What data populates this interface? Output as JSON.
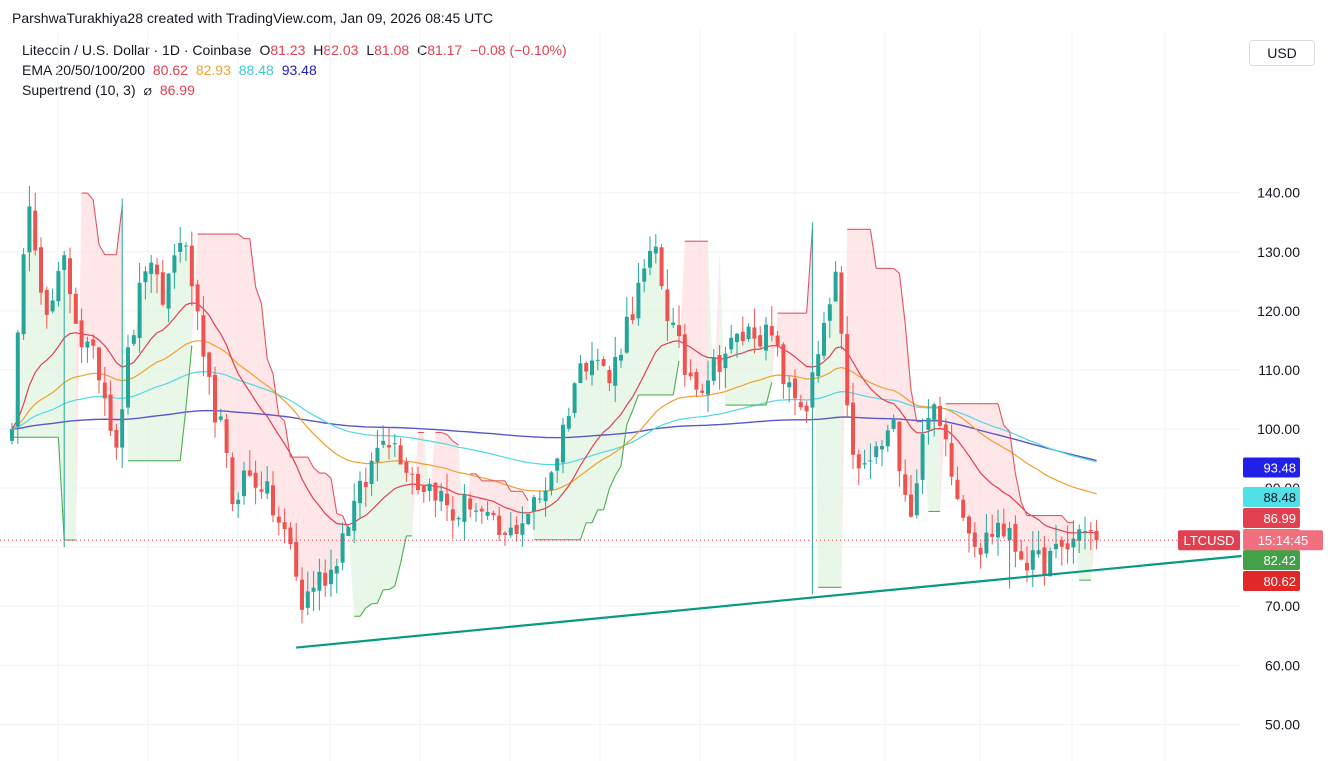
{
  "header": {
    "credit": "ParshwaTurakhiya28 created with TradingView.com, Jan 09, 2026 08:45 UTC",
    "symbol": "Litecoin / U.S. Dollar · 1D · Coinbase",
    "open_label": "O",
    "open": "81.23",
    "high_label": "H",
    "high": "82.03",
    "low_label": "L",
    "low": "81.08",
    "close_label": "C",
    "close": "81.17",
    "change": "−0.08 (−0.10%)",
    "ema_label": "EMA 20/50/100/200",
    "ema20": "80.62",
    "ema50": "82.93",
    "ema100": "88.48",
    "ema200": "93.48",
    "supertrend_label": "Supertrend (10, 3)",
    "supertrend_symbol": "⌀",
    "supertrend_value": "86.99",
    "currency": "USD"
  },
  "colors": {
    "up": "#26a69a",
    "down": "#ef5350",
    "ema20": "#e04050",
    "ema50": "#f0a030",
    "ema100": "#50d8e0",
    "ema200": "#5858c8",
    "st_down": "#e05560",
    "st_up": "#4caf50",
    "trend": "#089981",
    "grid": "#f0f3fa"
  },
  "chart_data": {
    "type": "candlestick",
    "symbol": "LTCUSD",
    "y_axis": {
      "ticks": [
        50,
        60,
        70,
        80,
        90,
        100,
        110,
        120,
        130,
        140
      ],
      "tick_labels": [
        "50.00",
        "60.00",
        "70.00",
        "80.00",
        "90.00",
        "100.00",
        "110.00",
        "120.00",
        "130.00",
        "140.00"
      ],
      "ylim": [
        46.5,
        154
      ],
      "grid": true
    },
    "price_line": 81.17,
    "price_tags": [
      {
        "label": "93.48",
        "value": 93.48,
        "color": "#2020e8"
      },
      {
        "label": "88.48",
        "value": 88.48,
        "color": "#50e0e8",
        "text_color": "#131722"
      },
      {
        "label": "86.99",
        "value": 86.99,
        "color": "#e04050"
      },
      {
        "label": "82.93",
        "value": 82.93,
        "color": "#f08020"
      },
      {
        "label": "82.42",
        "value": 82.42,
        "color": "#43a047"
      },
      {
        "label": "80.62",
        "value": 78.6,
        "color": "#e02828"
      }
    ],
    "symbol_tag": {
      "symbol": "LTCUSD",
      "countdown": "15:14:45",
      "value": 81.17
    },
    "close_path": [
      {
        "x": 0,
        "c": 102
      },
      {
        "x": 3,
        "c": 140
      },
      {
        "x": 6,
        "c": 118
      },
      {
        "x": 9,
        "c": 128
      },
      {
        "x": 12,
        "c": 115
      },
      {
        "x": 15,
        "c": 110
      },
      {
        "x": 18,
        "c": 98
      },
      {
        "x": 20,
        "c": 112
      },
      {
        "x": 23,
        "c": 128
      },
      {
        "x": 26,
        "c": 122
      },
      {
        "x": 29,
        "c": 133
      },
      {
        "x": 31,
        "c": 125
      },
      {
        "x": 33,
        "c": 110
      },
      {
        "x": 36,
        "c": 100
      },
      {
        "x": 38,
        "c": 88
      },
      {
        "x": 40,
        "c": 92
      },
      {
        "x": 43,
        "c": 91
      },
      {
        "x": 46,
        "c": 84
      },
      {
        "x": 48,
        "c": 80
      },
      {
        "x": 50,
        "c": 70
      },
      {
        "x": 52,
        "c": 74
      },
      {
        "x": 55,
        "c": 76
      },
      {
        "x": 58,
        "c": 85
      },
      {
        "x": 61,
        "c": 91
      },
      {
        "x": 64,
        "c": 100
      },
      {
        "x": 67,
        "c": 96
      },
      {
        "x": 70,
        "c": 91
      },
      {
        "x": 73,
        "c": 90
      },
      {
        "x": 76,
        "c": 85
      },
      {
        "x": 79,
        "c": 88
      },
      {
        "x": 82,
        "c": 84
      },
      {
        "x": 85,
        "c": 81
      },
      {
        "x": 88,
        "c": 85
      },
      {
        "x": 91,
        "c": 88
      },
      {
        "x": 94,
        "c": 96
      },
      {
        "x": 97,
        "c": 108
      },
      {
        "x": 100,
        "c": 114
      },
      {
        "x": 103,
        "c": 108
      },
      {
        "x": 106,
        "c": 118
      },
      {
        "x": 109,
        "c": 126
      },
      {
        "x": 111,
        "c": 130
      },
      {
        "x": 113,
        "c": 120
      },
      {
        "x": 116,
        "c": 110
      },
      {
        "x": 119,
        "c": 108
      },
      {
        "x": 122,
        "c": 112
      },
      {
        "x": 125,
        "c": 115
      },
      {
        "x": 128,
        "c": 117
      },
      {
        "x": 131,
        "c": 115
      },
      {
        "x": 134,
        "c": 106
      },
      {
        "x": 137,
        "c": 104
      },
      {
        "x": 140,
        "c": 116
      },
      {
        "x": 142,
        "c": 126
      },
      {
        "x": 144,
        "c": 102
      },
      {
        "x": 146,
        "c": 92
      },
      {
        "x": 149,
        "c": 96
      },
      {
        "x": 152,
        "c": 100
      },
      {
        "x": 155,
        "c": 86
      },
      {
        "x": 158,
        "c": 104
      },
      {
        "x": 161,
        "c": 98
      },
      {
        "x": 164,
        "c": 86
      },
      {
        "x": 167,
        "c": 80
      },
      {
        "x": 170,
        "c": 84
      },
      {
        "x": 173,
        "c": 80
      },
      {
        "x": 176,
        "c": 77
      },
      {
        "x": 179,
        "c": 78
      },
      {
        "x": 182,
        "c": 80
      },
      {
        "x": 185,
        "c": 84
      },
      {
        "x": 187,
        "c": 81
      }
    ],
    "trendline": [
      {
        "x": 49,
        "y": 63
      },
      {
        "x": 212,
        "y": 78.5
      }
    ],
    "series": [
      {
        "name": "EMA 20"
      },
      {
        "name": "EMA 50"
      },
      {
        "name": "EMA 100"
      },
      {
        "name": "EMA 200"
      },
      {
        "name": "Supertrend (10, 3)"
      }
    ]
  }
}
